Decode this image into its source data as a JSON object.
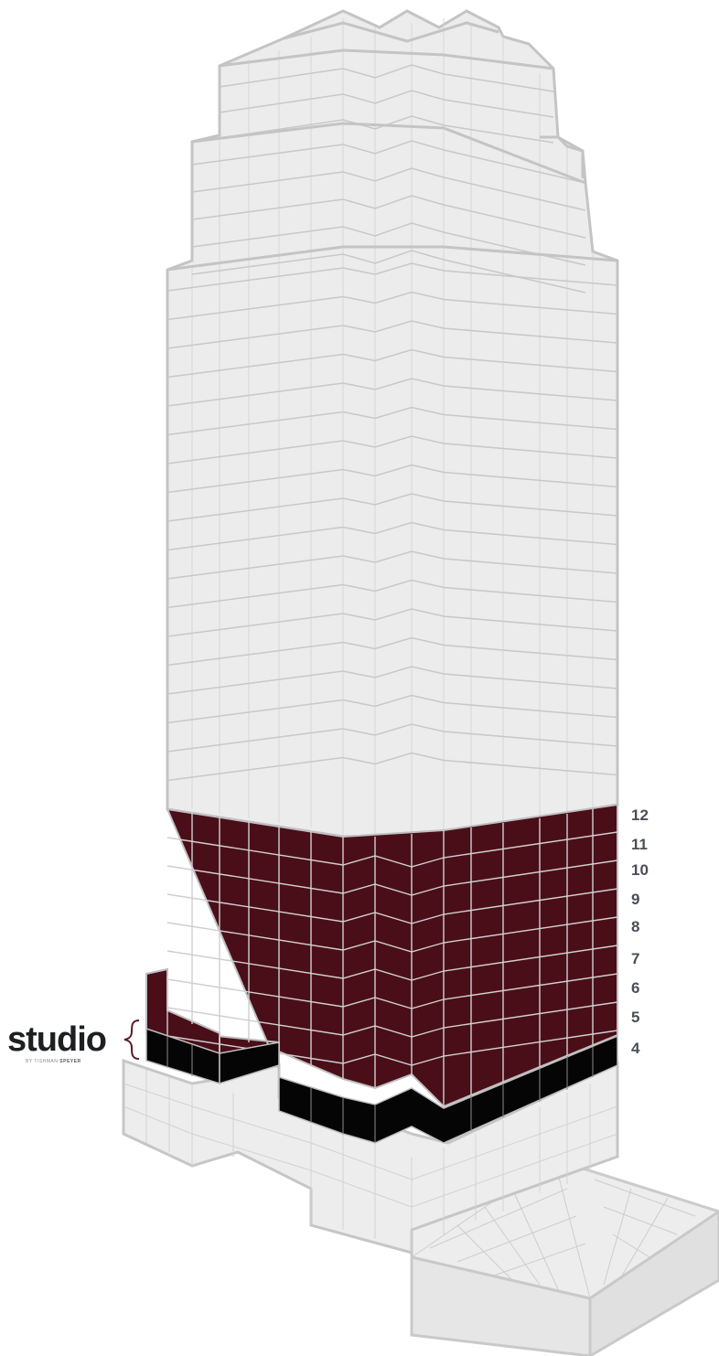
{
  "building": {
    "colors": {
      "facade": "#ececec",
      "facade_stroke": "#c9c9c9",
      "outline": "#bdbdbd",
      "leased": "#4a0e19",
      "leased_lines": "#cfcfcf",
      "base": "#050505",
      "label": "#4a4f57",
      "brace": "#5c1a28"
    },
    "selected_floors_label": "leased-floors"
  },
  "floor_labels": [
    "12",
    "11",
    "10",
    "9",
    "8",
    "7",
    "6",
    "5",
    "4"
  ],
  "studio": {
    "logo_word": "studio",
    "tagline_prefix": "BY TISHMAN",
    "tagline_suffix": "SPEYER"
  }
}
